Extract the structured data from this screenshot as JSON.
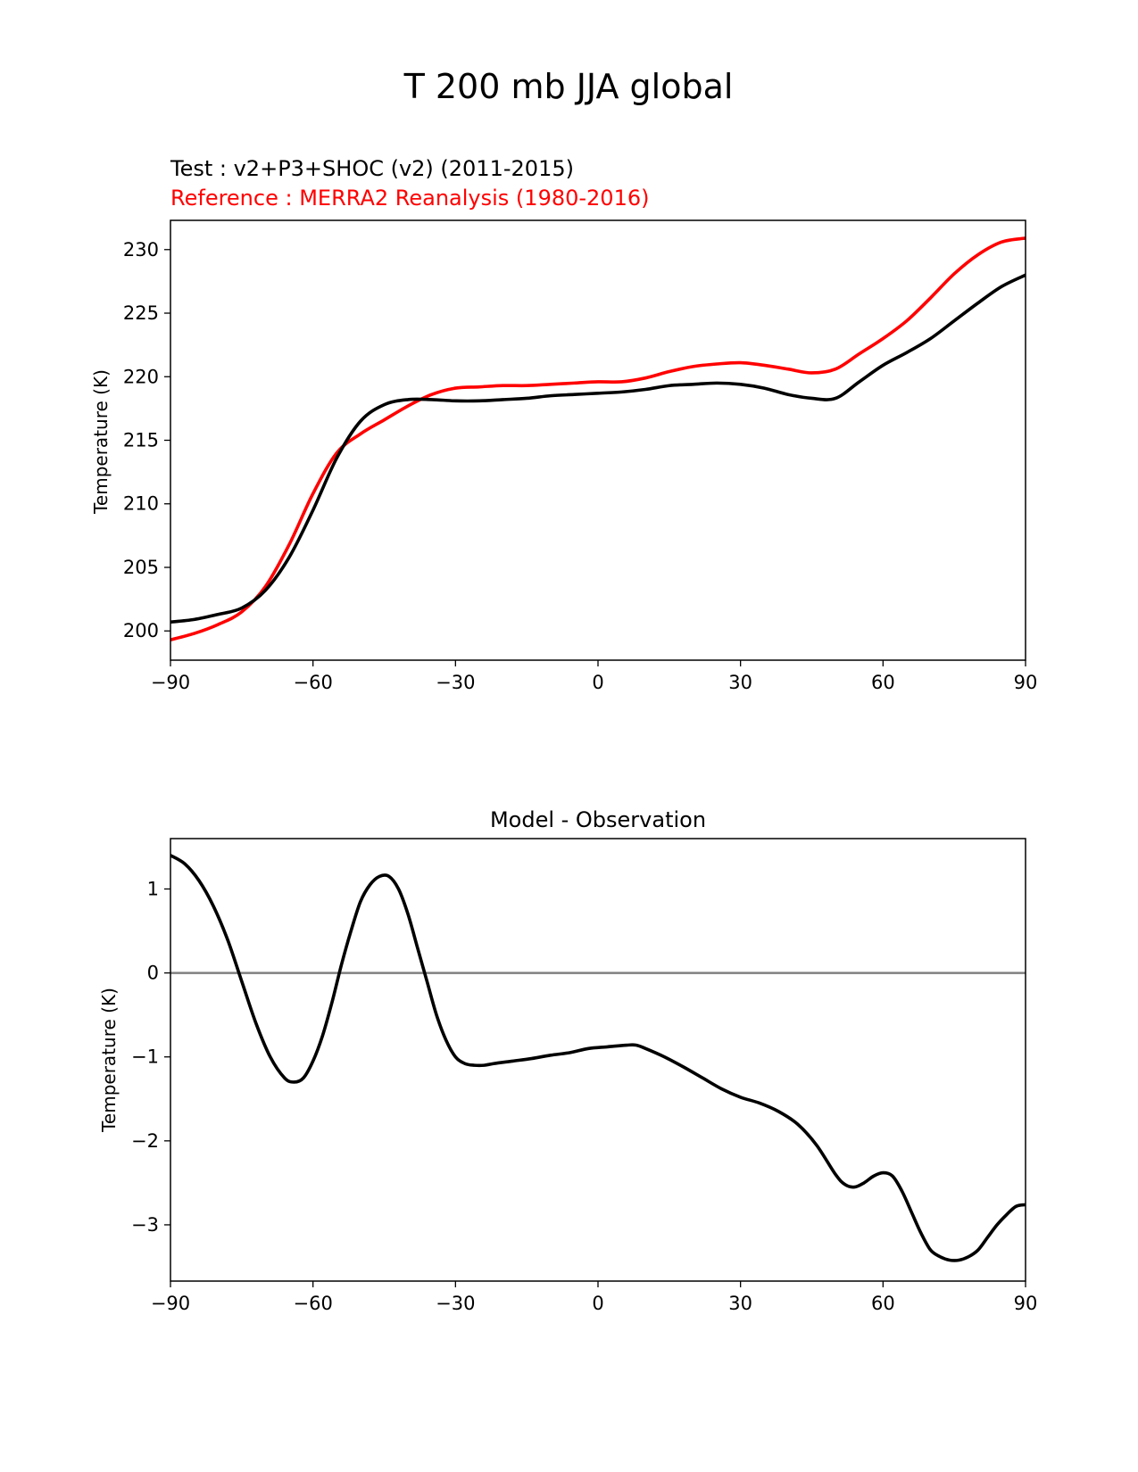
{
  "figure": {
    "title": "T 200 mb JJA global"
  },
  "colors": {
    "test": "#000000",
    "reference": "#ff0000",
    "zero_line": "#808080"
  },
  "chart_data": [
    {
      "type": "line",
      "test_label": "Test : v2+P3+SHOC (v2) (2011-2015)",
      "reference_label": "Reference : MERRA2 Reanalysis (1980-2016)",
      "ylabel": "Temperature (K)",
      "xlabel": "",
      "xlim": [
        -90,
        90
      ],
      "ylim": [
        197.7,
        232.3
      ],
      "xticks": [
        -90,
        -60,
        -30,
        0,
        30,
        60,
        90
      ],
      "xtick_labels": [
        "−90",
        "−60",
        "−30",
        "0",
        "30",
        "60",
        "90"
      ],
      "yticks": [
        200,
        205,
        210,
        215,
        220,
        225,
        230
      ],
      "ytick_labels": [
        "200",
        "205",
        "210",
        "215",
        "220",
        "225",
        "230"
      ],
      "x": [
        -90,
        -85,
        -80,
        -75,
        -70,
        -65,
        -60,
        -55,
        -50,
        -45,
        -40,
        -35,
        -30,
        -25,
        -20,
        -15,
        -10,
        -5,
        0,
        5,
        10,
        15,
        20,
        25,
        30,
        35,
        40,
        45,
        50,
        55,
        60,
        65,
        70,
        75,
        80,
        85,
        90
      ],
      "series": [
        {
          "name": "Test : v2+P3+SHOC (v2) (2011-2015)",
          "values": [
            200.7,
            200.9,
            201.3,
            201.8,
            203.2,
            205.8,
            209.5,
            213.6,
            216.5,
            217.8,
            218.2,
            218.2,
            218.1,
            218.1,
            218.2,
            218.3,
            218.5,
            218.6,
            218.7,
            218.8,
            219.0,
            219.3,
            219.4,
            219.5,
            219.4,
            219.1,
            218.6,
            218.3,
            218.3,
            219.6,
            220.9,
            221.9,
            223.0,
            224.4,
            225.8,
            227.1,
            228.0
          ]
        },
        {
          "name": "Reference : MERRA2 Reanalysis (1980-2016)",
          "values": [
            199.3,
            199.8,
            200.5,
            201.5,
            203.5,
            206.8,
            210.8,
            214.0,
            215.5,
            216.6,
            217.7,
            218.6,
            219.1,
            219.2,
            219.3,
            219.3,
            219.4,
            219.5,
            219.6,
            219.6,
            219.9,
            220.4,
            220.8,
            221.0,
            221.1,
            220.9,
            220.6,
            220.3,
            220.6,
            221.8,
            223.0,
            224.4,
            226.2,
            228.1,
            229.6,
            230.6,
            230.9
          ]
        }
      ]
    },
    {
      "type": "line",
      "title": "Model - Observation",
      "ylabel": "Temperature (K)",
      "xlabel": "",
      "xlim": [
        -90,
        90
      ],
      "ylim": [
        -3.67,
        1.6
      ],
      "xticks": [
        -90,
        -60,
        -30,
        0,
        30,
        60,
        90
      ],
      "xtick_labels": [
        "−90",
        "−60",
        "−30",
        "0",
        "30",
        "60",
        "90"
      ],
      "yticks": [
        1,
        0,
        -1,
        -2,
        -3
      ],
      "ytick_labels": [
        "1",
        "0",
        "−1",
        "−2",
        "−3"
      ],
      "zero_line": 0,
      "x": [
        -90,
        -87,
        -84,
        -81,
        -78,
        -75,
        -72,
        -69,
        -66,
        -64,
        -62,
        -60,
        -58,
        -56,
        -54,
        -52,
        -50,
        -48,
        -46,
        -44,
        -42,
        -40,
        -38,
        -36,
        -34,
        -32,
        -30,
        -28,
        -26,
        -24,
        -22,
        -18,
        -14,
        -10,
        -6,
        -2,
        2,
        6,
        8,
        10,
        14,
        18,
        22,
        26,
        30,
        34,
        38,
        42,
        46,
        50,
        52,
        54,
        56,
        58,
        60,
        62,
        64,
        66,
        68,
        70,
        72,
        74,
        76,
        78,
        80,
        82,
        84,
        86,
        88,
        90
      ],
      "series": [
        {
          "name": "Model - Observation",
          "values": [
            1.4,
            1.3,
            1.1,
            0.8,
            0.4,
            -0.1,
            -0.6,
            -1.0,
            -1.25,
            -1.3,
            -1.25,
            -1.05,
            -0.75,
            -0.35,
            0.1,
            0.5,
            0.85,
            1.05,
            1.15,
            1.15,
            1.0,
            0.7,
            0.3,
            -0.1,
            -0.5,
            -0.8,
            -1.0,
            -1.08,
            -1.1,
            -1.1,
            -1.08,
            -1.05,
            -1.02,
            -0.98,
            -0.95,
            -0.9,
            -0.88,
            -0.86,
            -0.86,
            -0.9,
            -1.0,
            -1.12,
            -1.25,
            -1.38,
            -1.48,
            -1.55,
            -1.65,
            -1.8,
            -2.05,
            -2.4,
            -2.52,
            -2.55,
            -2.5,
            -2.42,
            -2.38,
            -2.42,
            -2.6,
            -2.85,
            -3.1,
            -3.3,
            -3.38,
            -3.42,
            -3.42,
            -3.38,
            -3.3,
            -3.15,
            -3.0,
            -2.88,
            -2.78,
            -2.76
          ]
        }
      ]
    }
  ]
}
